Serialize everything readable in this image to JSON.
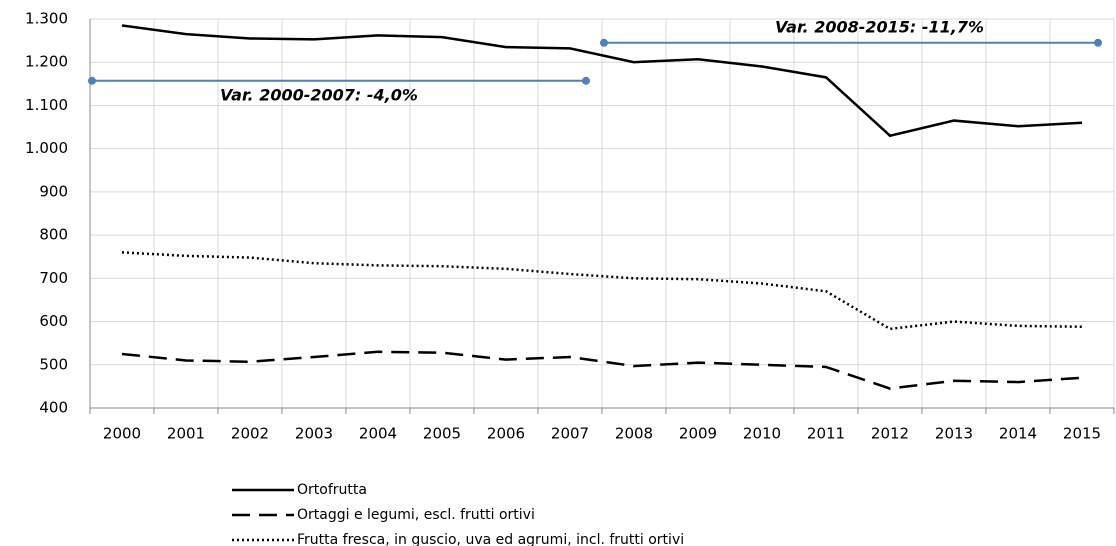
{
  "chart_data": {
    "type": "line",
    "categories": [
      "2000",
      "2001",
      "2002",
      "2003",
      "2004",
      "2005",
      "2006",
      "2007",
      "2008",
      "2009",
      "2010",
      "2011",
      "2012",
      "2013",
      "2014",
      "2015"
    ],
    "series": [
      {
        "name": "Ortofrutta",
        "color": "#000000",
        "dash": "solid",
        "values": [
          1285,
          1265,
          1255,
          1253,
          1262,
          1258,
          1235,
          1232,
          1200,
          1207,
          1190,
          1165,
          1030,
          1065,
          1052,
          1060
        ]
      },
      {
        "name": "Ortaggi e legumi, escl.  frutti ortivi",
        "color": "#000000",
        "dash": "dashed",
        "values": [
          525,
          510,
          507,
          518,
          530,
          528,
          512,
          518,
          497,
          505,
          500,
          495,
          445,
          463,
          460,
          470
        ]
      },
      {
        "name": "Frutta fresca, in guscio, uva ed agrumi, incl. frutti ortivi",
        "color": "#000000",
        "dash": "dotted",
        "values": [
          760,
          752,
          748,
          735,
          730,
          728,
          722,
          710,
          700,
          698,
          688,
          670,
          583,
          600,
          590,
          588
        ]
      }
    ],
    "annotations": [
      {
        "text": "Var. 2000-2007: -4,0%",
        "value": 1157,
        "color": "#4f81bd"
      },
      {
        "text": "Var. 2008-2015: -11,7%",
        "value": 1245,
        "color": "#4f81bd"
      }
    ],
    "ylim": [
      400,
      1300
    ],
    "yticks": [
      400,
      500,
      600,
      700,
      800,
      900,
      {
        "value": 1000,
        "label": "1.000"
      },
      {
        "value": 1100,
        "label": "1.100"
      },
      {
        "value": 1200,
        "label": "1.200"
      },
      {
        "value": 1300,
        "label": "1.300"
      }
    ],
    "grid": true,
    "legend": "bottom"
  }
}
